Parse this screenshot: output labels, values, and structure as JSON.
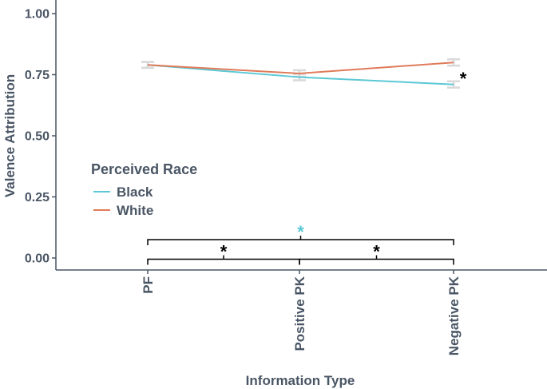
{
  "chart_data": {
    "type": "line",
    "xlabel": "Information Type",
    "ylabel": "Valence Attribution",
    "categories": [
      "PF",
      "Positive PK",
      "Negative PK"
    ],
    "yticks": [
      "0.00",
      "0.25",
      "0.50",
      "0.75",
      "1.00"
    ],
    "ylim": [
      -0.05,
      1.05
    ],
    "grid": false,
    "legend": {
      "title": "Perceived Race",
      "position": "left-middle"
    },
    "series": [
      {
        "name": "Black",
        "color": "#5bc8d6",
        "values": [
          0.79,
          0.74,
          0.71
        ],
        "errors": [
          0.012,
          0.013,
          0.013
        ]
      },
      {
        "name": "White",
        "color": "#e07b5a",
        "values": [
          0.79,
          0.755,
          0.8
        ],
        "errors": [
          0.012,
          0.013,
          0.013
        ]
      }
    ],
    "errorbar_color": "#d9d9d9",
    "annotations": [
      {
        "text": "*",
        "category": 2,
        "y": 0.755,
        "color": "#000000",
        "note": "race difference"
      }
    ],
    "brackets": [
      {
        "from": 0,
        "to": 2,
        "y": 0.075,
        "label": "*",
        "label_color": "#5bc8d6"
      },
      {
        "from": 0,
        "to": 1,
        "y": -0.005,
        "label": "*",
        "label_color": "#000000"
      },
      {
        "from": 1,
        "to": 2,
        "y": -0.005,
        "label": "*",
        "label_color": "#000000"
      }
    ]
  }
}
